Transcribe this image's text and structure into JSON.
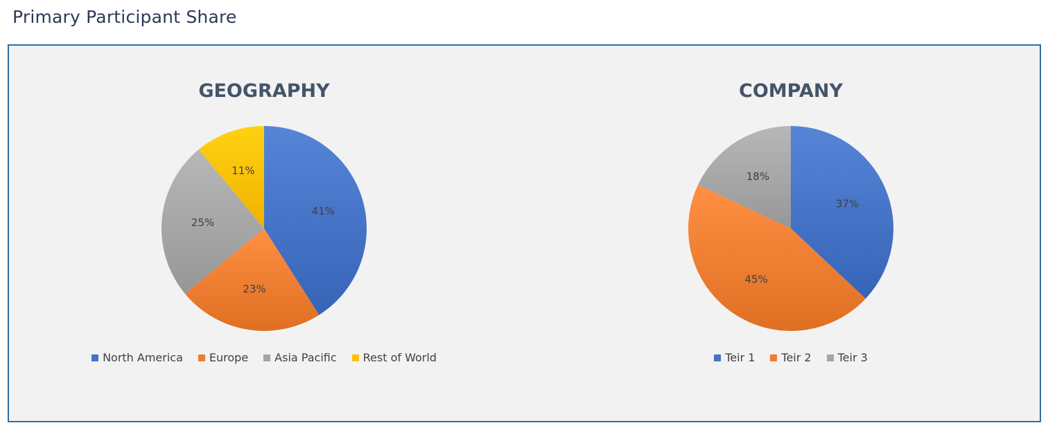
{
  "page": {
    "title": "Primary Participant Share"
  },
  "chart_data": [
    {
      "type": "pie",
      "title": "GEOGRAPHY",
      "categories": [
        "North America",
        "Europe",
        "Asia Pacific",
        "Rest of World"
      ],
      "values": [
        41,
        23,
        25,
        11
      ],
      "labels": [
        "41%",
        "23%",
        "25%",
        "11%"
      ],
      "colors": [
        "#4472c4",
        "#ed7d31",
        "#a5a5a5",
        "#ffc000"
      ],
      "legend_position": "bottom"
    },
    {
      "type": "pie",
      "title": "COMPANY",
      "categories": [
        "Teir 1",
        "Teir 2",
        "Teir 3"
      ],
      "values": [
        37,
        45,
        18
      ],
      "labels": [
        "37%",
        "45%",
        "18%"
      ],
      "colors": [
        "#4472c4",
        "#ed7d31",
        "#a5a5a5"
      ],
      "legend_position": "bottom"
    }
  ]
}
